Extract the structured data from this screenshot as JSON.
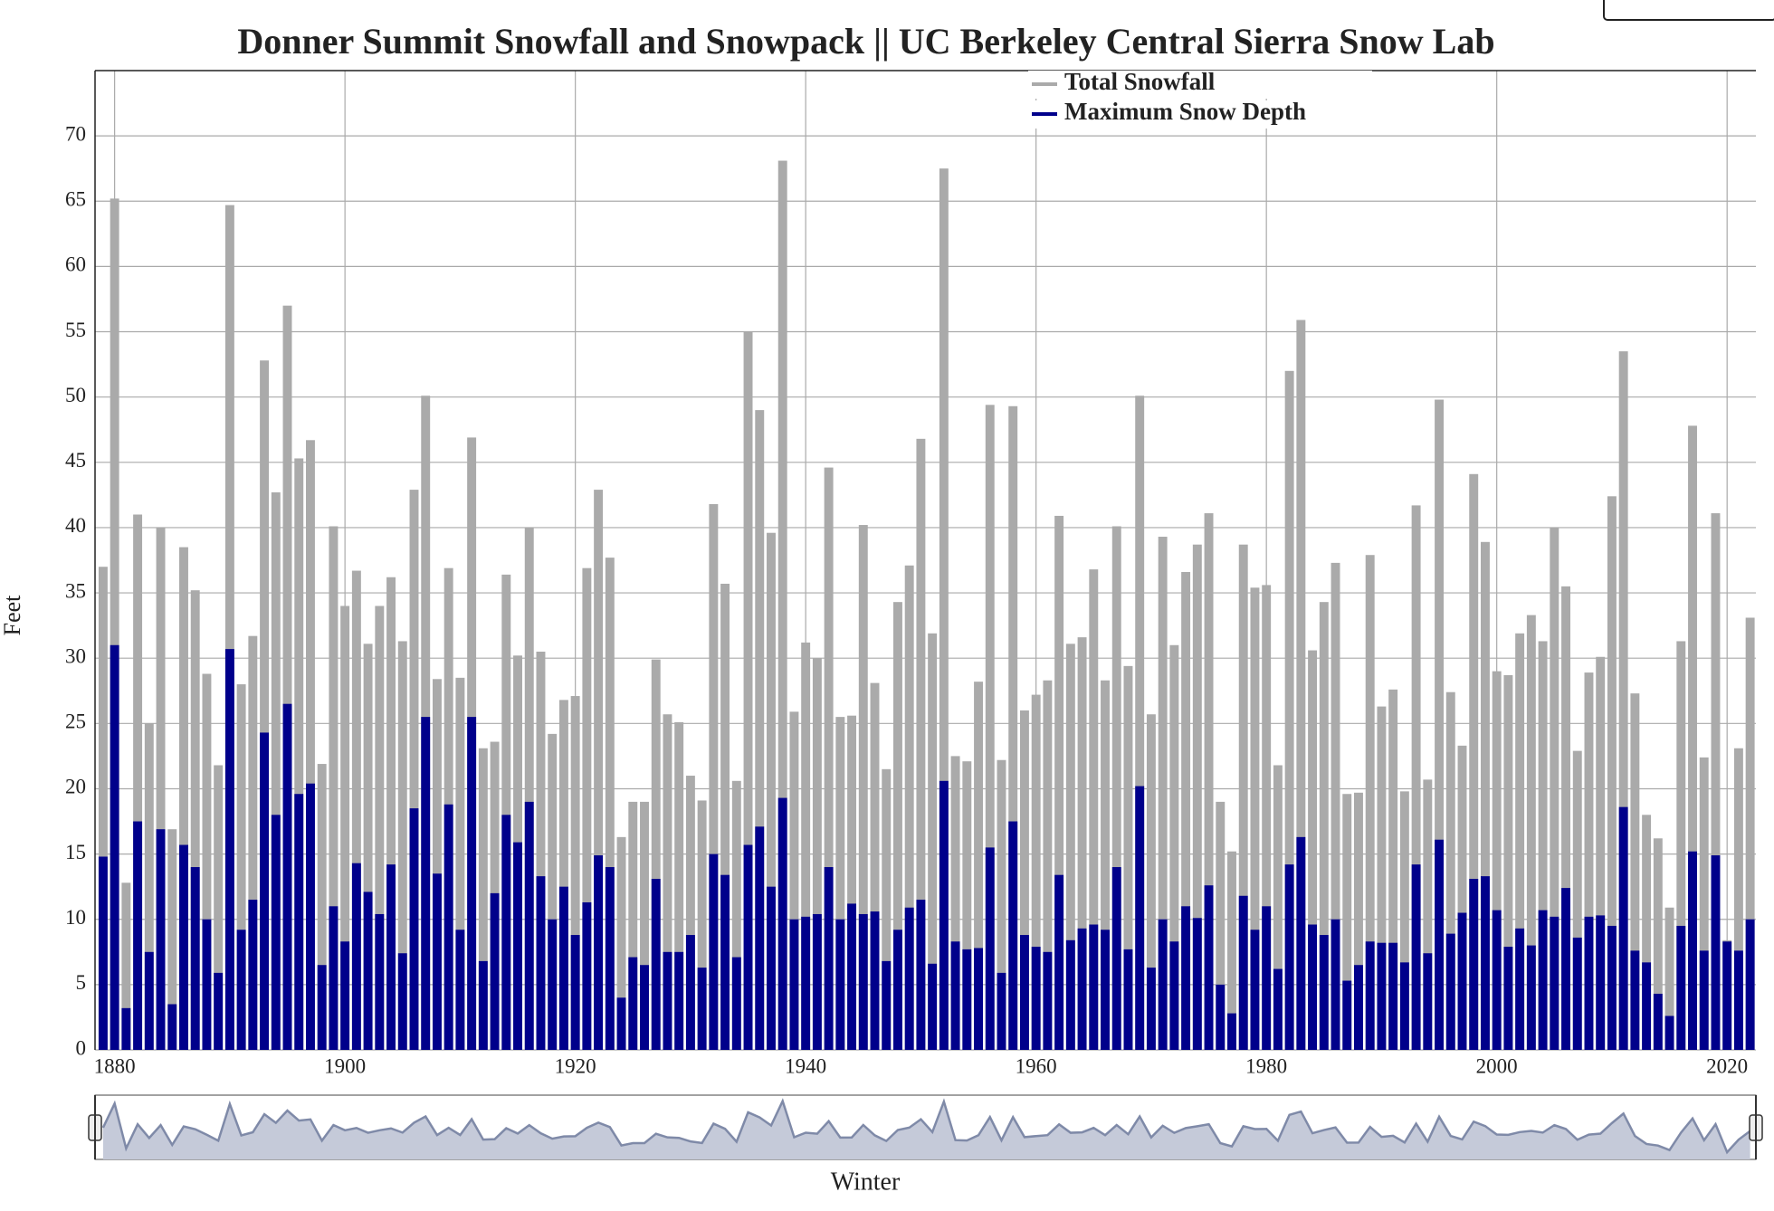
{
  "chart_data": {
    "type": "bar",
    "title": "Donner Summit Snowfall and Snowpack || UC Berkeley Central Sierra Snow Lab",
    "x_label": "Winter",
    "y_label": "Feet",
    "x": [
      1879,
      1880,
      1881,
      1882,
      1883,
      1884,
      1885,
      1886,
      1887,
      1888,
      1889,
      1890,
      1891,
      1892,
      1893,
      1894,
      1895,
      1896,
      1897,
      1898,
      1899,
      1900,
      1901,
      1902,
      1903,
      1904,
      1905,
      1906,
      1907,
      1908,
      1909,
      1910,
      1911,
      1912,
      1913,
      1914,
      1915,
      1916,
      1917,
      1918,
      1919,
      1920,
      1921,
      1922,
      1923,
      1924,
      1925,
      1926,
      1927,
      1928,
      1929,
      1930,
      1931,
      1932,
      1933,
      1934,
      1935,
      1936,
      1937,
      1938,
      1939,
      1940,
      1941,
      1942,
      1943,
      1944,
      1945,
      1946,
      1947,
      1948,
      1949,
      1950,
      1951,
      1952,
      1953,
      1954,
      1955,
      1956,
      1957,
      1958,
      1959,
      1960,
      1961,
      1962,
      1963,
      1964,
      1965,
      1966,
      1967,
      1968,
      1969,
      1970,
      1971,
      1972,
      1973,
      1974,
      1975,
      1976,
      1977,
      1978,
      1979,
      1980,
      1981,
      1982,
      1983,
      1984,
      1985,
      1986,
      1987,
      1988,
      1989,
      1990,
      1991,
      1992,
      1993,
      1994,
      1995,
      1996,
      1997,
      1998,
      1999,
      2000,
      2001,
      2002,
      2003,
      2004,
      2005,
      2006,
      2007,
      2008,
      2009,
      2010,
      2011,
      2012,
      2013,
      2014,
      2015,
      2016,
      2017,
      2018,
      2019,
      2020,
      2021,
      2022
    ],
    "series": [
      {
        "name": "Total Snowfall",
        "color": "#aaaaaa",
        "values": [
          37,
          65.2,
          12.8,
          41,
          25,
          40,
          16.9,
          38.5,
          35.2,
          28.8,
          21.8,
          64.7,
          28,
          31.7,
          52.8,
          42.7,
          57,
          45.3,
          46.7,
          21.9,
          40.1,
          34,
          36.7,
          31.1,
          34,
          36.2,
          31.3,
          42.9,
          50.1,
          28.4,
          36.9,
          28.5,
          46.9,
          23.1,
          23.6,
          36.4,
          30.2,
          40,
          30.5,
          24.2,
          26.8,
          27.1,
          36.9,
          42.9,
          37.7,
          16.3,
          19,
          19,
          29.9,
          25.7,
          25.1,
          21,
          19.1,
          41.8,
          35.7,
          20.6,
          55,
          49,
          39.6,
          68.1,
          25.9,
          31.2,
          30,
          44.6,
          25.5,
          25.6,
          40.2,
          28.1,
          21.5,
          34.3,
          37.1,
          46.8,
          31.9,
          67.5,
          22.5,
          22.1,
          28.2,
          49.4,
          22.2,
          49.3,
          26,
          27.2,
          28.3,
          40.9,
          31.1,
          31.6,
          36.8,
          28.3,
          40.1,
          29.4,
          50.1,
          25.7,
          39.3,
          31,
          36.6,
          38.7,
          41.1,
          19,
          15.2,
          38.7,
          35.4,
          35.6,
          21.8,
          52,
          55.9,
          30.6,
          34.3,
          37.3,
          19.6,
          19.7,
          37.9,
          26.3,
          27.6,
          19.8,
          41.7,
          20.7,
          49.8,
          27.4,
          23.3,
          44.1,
          38.9,
          29,
          28.7,
          31.9,
          33.3,
          31.3,
          40,
          35.5,
          22.9,
          28.9,
          30.1,
          42.4,
          53.5,
          27.3,
          18,
          16.2,
          10.9,
          31.3,
          47.8,
          22.4,
          41.1,
          8.4,
          23.1,
          33.1
        ]
      },
      {
        "name": "Maximum Snow Depth",
        "color": "#00008b",
        "values": [
          14.8,
          31,
          3.2,
          17.5,
          7.5,
          16.9,
          3.5,
          15.7,
          14,
          10,
          5.9,
          30.7,
          9.2,
          11.5,
          24.3,
          18,
          26.5,
          19.6,
          20.4,
          6.5,
          11,
          8.3,
          14.3,
          12.1,
          10.4,
          14.2,
          7.4,
          18.5,
          25.5,
          13.5,
          18.8,
          9.2,
          25.5,
          6.8,
          12,
          18,
          15.9,
          19,
          13.3,
          10,
          12.5,
          8.8,
          11.3,
          14.9,
          14,
          4,
          7.1,
          6.5,
          13.1,
          7.5,
          7.5,
          8.8,
          6.3,
          15,
          13.4,
          7.1,
          15.7,
          17.1,
          12.5,
          19.3,
          10,
          10.2,
          10.4,
          14,
          10,
          11.2,
          10.4,
          10.6,
          6.8,
          9.2,
          10.9,
          11.5,
          6.6,
          20.6,
          8.3,
          7.7,
          7.8,
          15.5,
          5.9,
          17.5,
          8.8,
          7.9,
          7.5,
          13.4,
          8.4,
          9.3,
          9.6,
          9.2,
          14,
          7.7,
          20.2,
          6.3,
          10,
          8.3,
          11,
          10.1,
          12.6,
          5,
          2.8,
          11.8,
          9.2,
          11,
          6.2,
          14.2,
          16.3,
          9.6,
          8.8,
          10,
          5.3,
          6.5,
          8.3,
          8.2,
          8.2,
          6.7,
          14.2,
          7.4,
          16.1,
          8.9,
          10.5,
          13.1,
          13.3,
          10.7,
          7.9,
          9.3,
          8,
          10.7,
          10.2,
          12.4,
          8.6,
          10.2,
          10.3,
          9.5,
          18.6,
          7.6,
          6.7,
          4.3,
          2.6,
          9.5,
          15.2,
          7.6,
          14.9,
          8.3,
          7.6,
          10
        ]
      }
    ],
    "xlim": [
      1878.3,
      2022.5
    ],
    "xticks": [
      1880,
      1900,
      1920,
      1940,
      1960,
      1980,
      2000,
      2020
    ],
    "ylim": [
      0,
      75
    ],
    "yticks": [
      0,
      5,
      10,
      15,
      20,
      25,
      30,
      35,
      40,
      45,
      50,
      55,
      60,
      65,
      70
    ],
    "grid": true,
    "legend": "top-right"
  }
}
